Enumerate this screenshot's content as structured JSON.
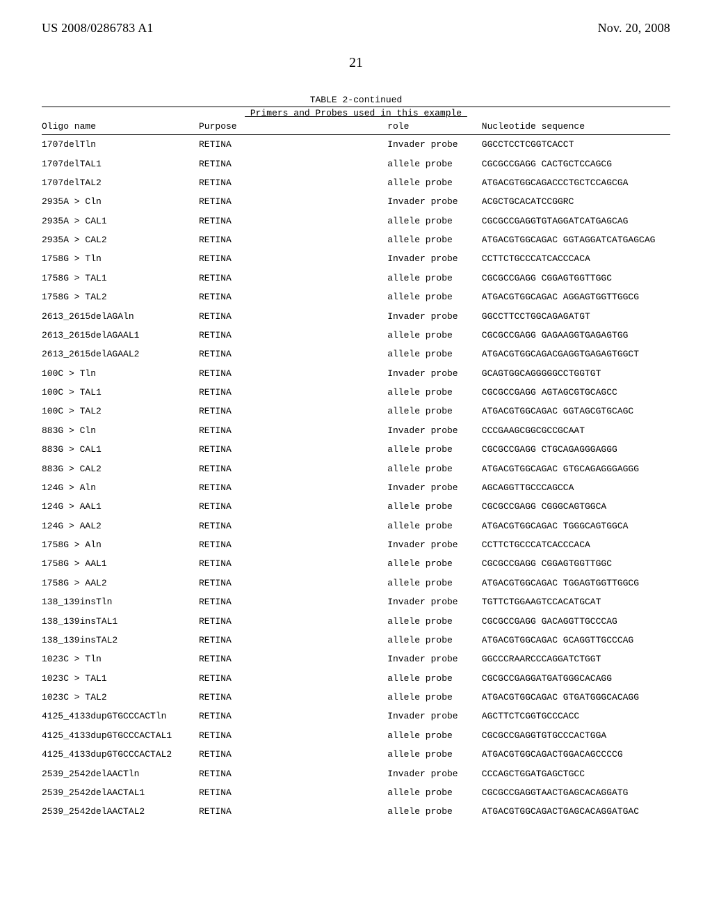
{
  "header": {
    "left": "US 2008/0286783 A1",
    "right": "Nov. 20, 2008"
  },
  "page_number": "21",
  "table": {
    "caption": "TABLE 2-continued",
    "subtitle": " Primers and Probes used in this example ",
    "columns": [
      "Oligo name",
      "Purpose",
      "role",
      "Nucleotide sequence"
    ],
    "rows": [
      [
        "1707delTln",
        "RETINA",
        "Invader probe",
        "GGCCTCCTCGGTCACCT"
      ],
      [
        "1707delTAL1",
        "RETINA",
        "allele probe",
        "CGCGCCGAGG CACTGCTCCAGCG"
      ],
      [
        "1707delTAL2",
        "RETINA",
        "allele probe",
        "ATGACGTGGCAGACCCTGCTCCAGCGA"
      ],
      [
        "2935A > Cln",
        "RETINA",
        "Invader probe",
        "ACGCTGCACATCCGGRC"
      ],
      [
        "2935A > CAL1",
        "RETINA",
        "allele probe",
        "CGCGCCGAGGTGTAGGATCATGAGCAG"
      ],
      [
        "2935A > CAL2",
        "RETINA",
        "allele probe",
        "ATGACGTGGCAGAC GGTAGGATCATGAGCAG"
      ],
      [
        "1758G > Tln",
        "RETINA",
        "Invader probe",
        "CCTTCTGCCCATCACCCACA"
      ],
      [
        "1758G > TAL1",
        "RETINA",
        "allele probe",
        "CGCGCCGAGG CGGAGTGGTTGGC"
      ],
      [
        "1758G > TAL2",
        "RETINA",
        "allele probe",
        "ATGACGTGGCAGAC AGGAGTGGTTGGCG"
      ],
      [
        "2613_2615delAGAln",
        "RETINA",
        "Invader probe",
        "GGCCTTCCTGGCAGAGATGT"
      ],
      [
        "2613_2615delAGAAL1",
        "RETINA",
        "allele probe",
        "CGCGCCGAGG GAGAAGGTGAGAGTGG"
      ],
      [
        "2613_2615delAGAAL2",
        "RETINA",
        "allele probe",
        "ATGACGTGGCAGACGAGGTGAGAGTGGCT"
      ],
      [
        "100C > Tln",
        "RETINA",
        "Invader probe",
        "GCAGTGGCAGGGGGCCTGGTGT"
      ],
      [
        "100C > TAL1",
        "RETINA",
        "allele probe",
        "CGCGCCGAGG AGTAGCGTGCAGCC"
      ],
      [
        "100C > TAL2",
        "RETINA",
        "allele probe",
        "ATGACGTGGCAGAC GGTAGCGTGCAGC"
      ],
      [
        "883G > Cln",
        "RETINA",
        "Invader probe",
        "CCCGAAGCGGCGCCGCAAT"
      ],
      [
        "883G > CAL1",
        "RETINA",
        "allele probe",
        "CGCGCCGAGG CTGCAGAGGGAGGG"
      ],
      [
        "883G > CAL2",
        "RETINA",
        "allele probe",
        "ATGACGTGGCAGAC GTGCAGAGGGAGGG"
      ],
      [
        "124G > Aln",
        "RETINA",
        "Invader probe",
        "AGCAGGTTGCCCAGCCA"
      ],
      [
        "124G > AAL1",
        "RETINA",
        "allele probe",
        "CGCGCCGAGG CGGGCAGTGGCA"
      ],
      [
        "124G > AAL2",
        "RETINA",
        "allele probe",
        "ATGACGTGGCAGAC TGGGCAGTGGCA"
      ],
      [
        "1758G > Aln",
        "RETINA",
        "Invader probe",
        "CCTTCTGCCCATCACCCACA"
      ],
      [
        "1758G > AAL1",
        "RETINA",
        "allele probe",
        "CGCGCCGAGG CGGAGTGGTTGGC"
      ],
      [
        "1758G > AAL2",
        "RETINA",
        "allele probe",
        "ATGACGTGGCAGAC TGGAGTGGTTGGCG"
      ],
      [
        "138_139insTln",
        "RETINA",
        "Invader probe",
        "TGTTCTGGAAGTCCACATGCAT"
      ],
      [
        "138_139insTAL1",
        "RETINA",
        "allele probe",
        "CGCGCCGAGG GACAGGTTGCCCAG"
      ],
      [
        "138_139insTAL2",
        "RETINA",
        "allele probe",
        "ATGACGTGGCAGAC GCAGGTTGCCCAG"
      ],
      [
        "1023C > Tln",
        "RETINA",
        "Invader probe",
        "GGCCCRAARCCCAGGATCTGGT"
      ],
      [
        "1023C > TAL1",
        "RETINA",
        "allele probe",
        "CGCGCCGAGGATGATGGGCACAGG"
      ],
      [
        "1023C > TAL2",
        "RETINA",
        "allele probe",
        "ATGACGTGGCAGAC GTGATGGGCACAGG"
      ],
      [
        "4125_4133dupGTGCCCACTln",
        "RETINA",
        "Invader probe",
        "AGCTTCTCGGTGCCCACC"
      ],
      [
        "4125_4133dupGTGCCCACTAL1",
        "RETINA",
        "allele probe",
        "CGCGCCGAGGTGTGCCCACTGGA"
      ],
      [
        "4125_4133dupGTGCCCACTAL2",
        "RETINA",
        "allele probe",
        "ATGACGTGGCAGACTGGACAGCCCCG"
      ],
      [
        "2539_2542delAACTln",
        "RETINA",
        "Invader probe",
        "CCCAGCTGGATGAGCTGCC"
      ],
      [
        "2539_2542delAACTAL1",
        "RETINA",
        "allele probe",
        "CGCGCCGAGGTAACTGAGCACAGGATG"
      ],
      [
        "2539_2542delAACTAL2",
        "RETINA",
        "allele probe",
        "ATGACGTGGCAGACTGAGCACAGGATGAC"
      ]
    ]
  }
}
